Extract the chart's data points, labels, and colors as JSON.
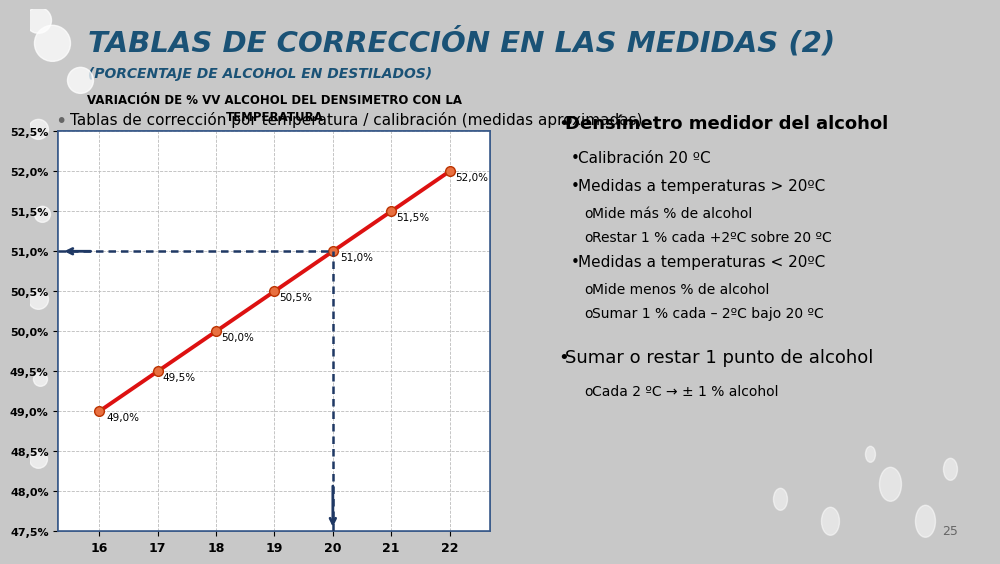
{
  "title": "TABLAS DE CORRECCIÓN EN LAS MEDIDAS (2)",
  "subtitle": "(PORCENTAJE DE ALCOHOL EN DESTILADOS)",
  "bullet_main": "Tablas de corrección por temperatura / calibración (medidas aproximadas)",
  "chart_title": "VARIACIÓN DE % VV ALCOHOL DEL DENSIMETRO CON LA\nTEMPERATURA",
  "x_values": [
    16,
    17,
    18,
    19,
    20,
    21,
    22
  ],
  "y_values": [
    49.0,
    49.5,
    50.0,
    50.5,
    51.0,
    51.5,
    52.0
  ],
  "x_labels": [
    "16",
    "17",
    "18",
    "19",
    "20",
    "21",
    "22"
  ],
  "y_ticks": [
    47.5,
    48.0,
    48.5,
    49.0,
    49.5,
    50.0,
    50.5,
    51.0,
    51.5,
    52.0,
    52.5
  ],
  "y_labels": [
    "47,5%",
    "48,0%",
    "48,5%",
    "49,0%",
    "49,5%",
    "50,0%",
    "50,5%",
    "51,0%",
    "51,5%",
    "52,0%",
    "52,5%"
  ],
  "point_labels": [
    "49,0%",
    "49,5%",
    "50,0%",
    "50,5%",
    "51,0%",
    "51,5%",
    "52,0%"
  ],
  "line_color": "#DD1111",
  "marker_facecolor": "#E87040",
  "marker_edgecolor": "#BB3300",
  "dotted_line_color": "#1F3864",
  "slide_bg": "#C8C8C8",
  "title_bg": "#D8D8D8",
  "title_color": "#1A5276",
  "chart_border_color": "#3A5A8A",
  "right_panel_items": [
    {
      "text": "Densímetro medidor del alcohol",
      "level": 1,
      "bold": true
    },
    {
      "text": "Calibración 20 ºC",
      "level": 2,
      "bold": false
    },
    {
      "text": "Medidas a temperaturas > 20ºC",
      "level": 2,
      "bold": false
    },
    {
      "text": "Mide más % de alcohol",
      "level": 3,
      "bold": false
    },
    {
      "text": "Restar 1 % cada +2ºC sobre 20 ºC",
      "level": 3,
      "bold": false
    },
    {
      "text": "Medidas a temperaturas < 20ºC",
      "level": 2,
      "bold": false
    },
    {
      "text": "Mide menos % de alcohol",
      "level": 3,
      "bold": false
    },
    {
      "text": "Sumar 1 % cada – 2ºC bajo 20 ºC",
      "level": 3,
      "bold": false
    },
    {
      "text": "Sumar o restar 1 punto de alcohol",
      "level": 1,
      "bold": false
    },
    {
      "text": "Cada 2 ºC → ± 1 % alcohol",
      "level": 3,
      "bold": false
    }
  ],
  "page_number": "25"
}
